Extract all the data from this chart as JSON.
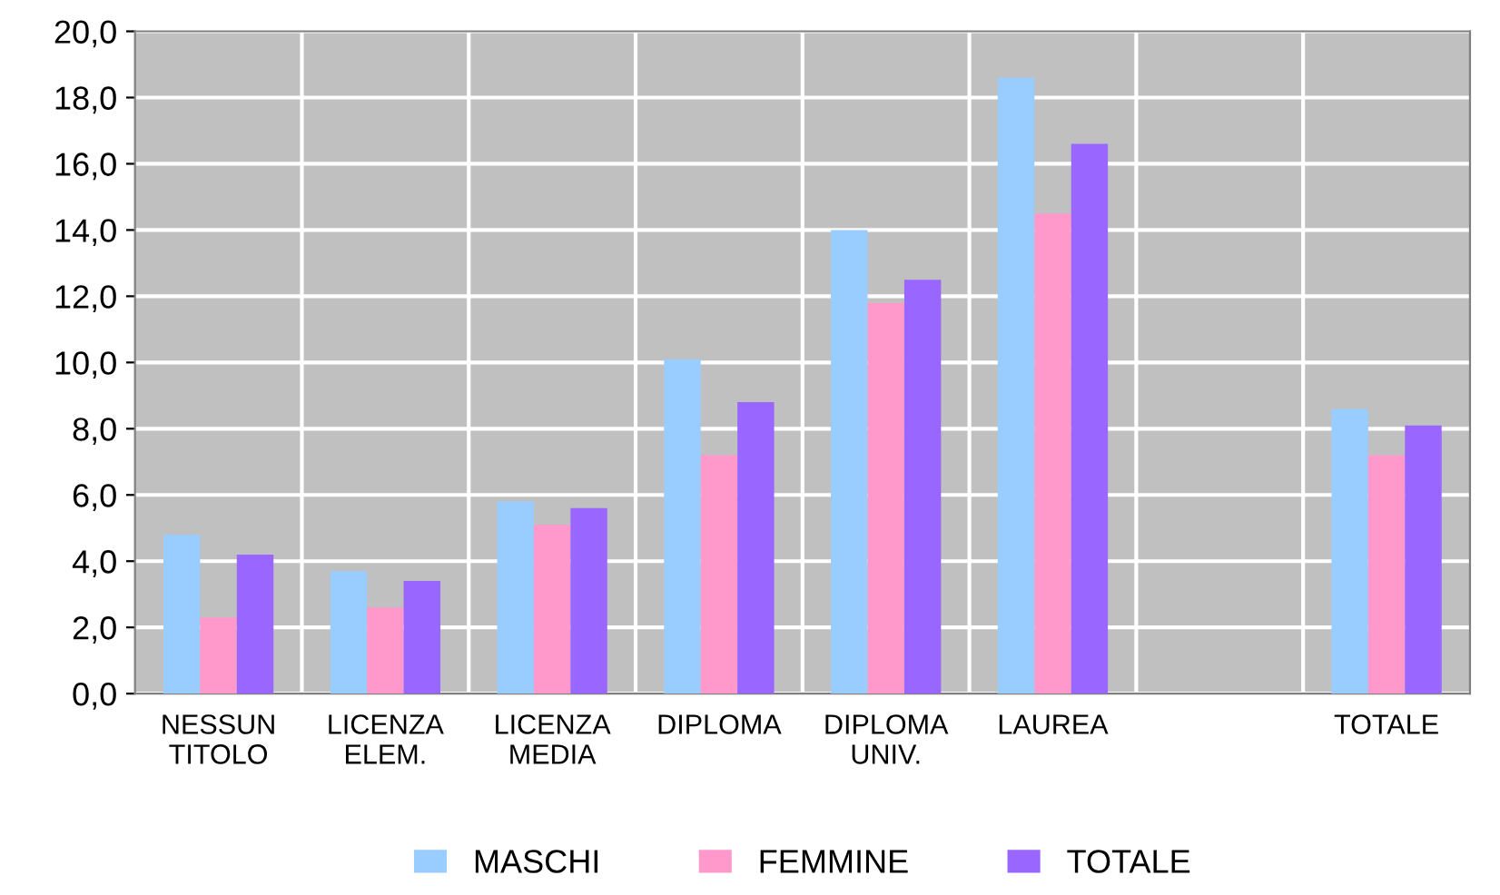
{
  "chart_data": {
    "type": "bar",
    "categories": [
      "NESSUN\nTITOLO",
      "LICENZA\nELEM.",
      "LICENZA\nMEDIA",
      "DIPLOMA",
      "DIPLOMA\nUNIV.",
      "LAUREA",
      null,
      "TOTALE"
    ],
    "series": [
      {
        "name": "MASCHI",
        "color": "#99ccff",
        "values": [
          4.8,
          3.7,
          5.8,
          10.1,
          14.0,
          18.6,
          null,
          8.6
        ]
      },
      {
        "name": "FEMMINE",
        "color": "#ff99cc",
        "values": [
          2.3,
          2.6,
          5.1,
          7.2,
          11.8,
          14.5,
          null,
          7.2
        ]
      },
      {
        "name": "TOTALE",
        "color": "#9966ff",
        "values": [
          4.2,
          3.4,
          5.6,
          8.8,
          12.5,
          16.6,
          null,
          8.1
        ]
      }
    ],
    "ylim": [
      0,
      20
    ],
    "yticks": [
      {
        "value": 0,
        "label": "0,0"
      },
      {
        "value": 2,
        "label": "2,0"
      },
      {
        "value": 4,
        "label": "4,0"
      },
      {
        "value": 6,
        "label": "6,0"
      },
      {
        "value": 8,
        "label": "8,0"
      },
      {
        "value": 10,
        "label": "10,0"
      },
      {
        "value": 12,
        "label": "12,0"
      },
      {
        "value": 14,
        "label": "14,0"
      },
      {
        "value": 16,
        "label": "16,0"
      },
      {
        "value": 18,
        "label": "18,0"
      },
      {
        "value": 20,
        "label": "20,0"
      }
    ],
    "grid": true,
    "legend": "bottom"
  }
}
